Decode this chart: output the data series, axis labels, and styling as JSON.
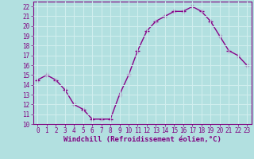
{
  "x": [
    0,
    1,
    2,
    3,
    4,
    5,
    6,
    7,
    8,
    9,
    10,
    11,
    12,
    13,
    14,
    15,
    16,
    17,
    18,
    19,
    20,
    21,
    22,
    23
  ],
  "y": [
    14.5,
    15.0,
    14.5,
    13.5,
    12.0,
    11.5,
    10.5,
    10.5,
    10.5,
    13.0,
    15.0,
    17.5,
    19.5,
    20.5,
    21.0,
    21.5,
    21.5,
    22.0,
    21.5,
    20.5,
    19.0,
    17.5,
    17.0,
    16.0
  ],
  "line_color": "#880088",
  "marker": "+",
  "marker_size": 4,
  "marker_linewidth": 1.0,
  "xlabel": "Windchill (Refroidissement éolien,°C)",
  "xlim": [
    -0.5,
    23.5
  ],
  "ylim": [
    10,
    22.5
  ],
  "yticks": [
    10,
    11,
    12,
    13,
    14,
    15,
    16,
    17,
    18,
    19,
    20,
    21,
    22
  ],
  "xticks": [
    0,
    1,
    2,
    3,
    4,
    5,
    6,
    7,
    8,
    9,
    10,
    11,
    12,
    13,
    14,
    15,
    16,
    17,
    18,
    19,
    20,
    21,
    22,
    23
  ],
  "background_color": "#b2e0e0",
  "grid_color": "#d0eeee",
  "tick_color": "#800080",
  "label_color": "#800080",
  "line_width": 1.0,
  "tick_fontsize": 5.5,
  "xlabel_fontsize": 6.5
}
